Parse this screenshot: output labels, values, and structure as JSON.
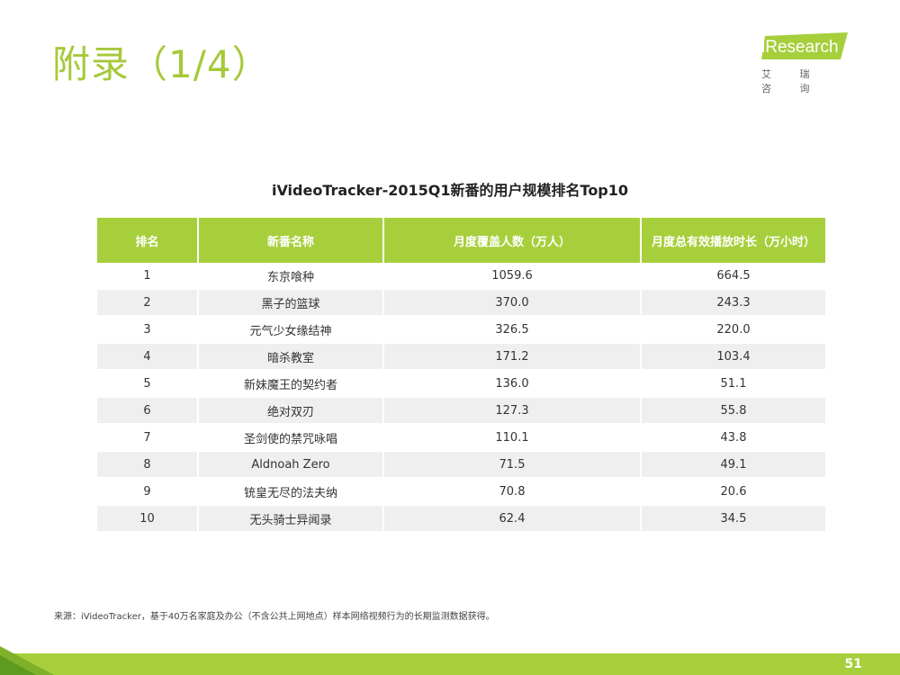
{
  "page": {
    "title": "附录（1/4）",
    "page_number": "51"
  },
  "logo": {
    "text": "iResearch",
    "subtitle": "艾 瑞 咨 询"
  },
  "table": {
    "title": "iVideoTracker-2015Q1新番的用户规模排名Top10",
    "headers": [
      "排名",
      "新番名称",
      "月度覆盖人数（万人）",
      "月度总有效播放时长（万小时）"
    ],
    "rows": [
      [
        "1",
        "东京喰种",
        "1059.6",
        "664.5"
      ],
      [
        "2",
        "黑子的篮球",
        "370.0",
        "243.3"
      ],
      [
        "3",
        "元气少女缘结神",
        "326.5",
        "220.0"
      ],
      [
        "4",
        "暗杀教室",
        "171.2",
        "103.4"
      ],
      [
        "5",
        "新妹魔王的契约者",
        "136.0",
        "51.1"
      ],
      [
        "6",
        "绝对双刃",
        "127.3",
        "55.8"
      ],
      [
        "7",
        "圣剑使的禁咒咏唱",
        "110.1",
        "43.8"
      ],
      [
        "8",
        "Aldnoah Zero",
        "71.5",
        "49.1"
      ],
      [
        "9",
        "铳皇无尽的法夫纳",
        "70.8",
        "20.6"
      ],
      [
        "10",
        "无头骑士异闻录",
        "62.4",
        "34.5"
      ]
    ]
  },
  "footer": {
    "source": "来源：iVideoTracker，基于40万名家庭及办公（不含公共上网地点）样本网络视频行为的长期监测数据获得。"
  },
  "colors": {
    "accent": "#a6cf3b",
    "title": "#a6c93a",
    "row_alt": "#efefef"
  }
}
